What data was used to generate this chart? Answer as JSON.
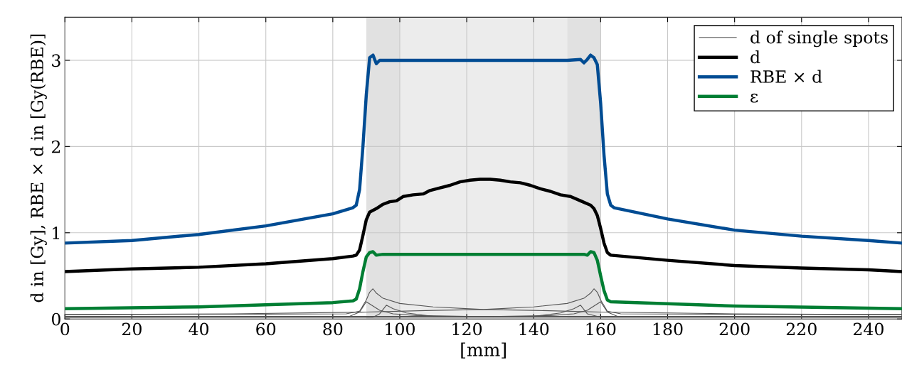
{
  "chart_data": {
    "type": "line",
    "xlabel": "[mm]",
    "ylabel": "d in [Gy], RBE × d in [Gy(RBE)]",
    "xlim": [
      0,
      250
    ],
    "ylim": [
      0,
      3.5
    ],
    "xticks": [
      0,
      20,
      40,
      60,
      80,
      100,
      120,
      140,
      160,
      180,
      200,
      220,
      240
    ],
    "yticks": [
      0,
      1,
      2,
      3
    ],
    "grid": true,
    "legend": "top right",
    "bands": [
      {
        "axis": "x",
        "from": 90,
        "to": 100,
        "color": "#e1e1e1"
      },
      {
        "axis": "x",
        "from": 100,
        "to": 150,
        "color": "#ececec"
      },
      {
        "axis": "x",
        "from": 150,
        "to": 160,
        "color": "#e1e1e1"
      }
    ],
    "series": [
      {
        "name": "d of single spots",
        "color": "#555555",
        "x": [
          0,
          60,
          84,
          88,
          90,
          91,
          92,
          93,
          95,
          100,
          110,
          125,
          140,
          160,
          200,
          250
        ],
        "values": [
          0.05,
          0.055,
          0.06,
          0.09,
          0.22,
          0.31,
          0.35,
          0.3,
          0.24,
          0.18,
          0.14,
          0.11,
          0.1,
          0.08,
          0.06,
          0.05
        ]
      },
      {
        "color": "#555555",
        "x": [
          0,
          50,
          90,
          110,
          125,
          140,
          150,
          155,
          157,
          158,
          159,
          160,
          162,
          166,
          190,
          250
        ],
        "values": [
          0.05,
          0.06,
          0.08,
          0.1,
          0.11,
          0.14,
          0.18,
          0.24,
          0.3,
          0.35,
          0.31,
          0.22,
          0.09,
          0.06,
          0.055,
          0.05
        ]
      },
      {
        "color": "#555555",
        "x": [
          0,
          85,
          88,
          90,
          92,
          94,
          98,
          105,
          120,
          250
        ],
        "values": [
          0.03,
          0.03,
          0.08,
          0.2,
          0.15,
          0.1,
          0.06,
          0.04,
          0.03,
          0.03
        ]
      },
      {
        "color": "#555555",
        "x": [
          0,
          130,
          145,
          152,
          156,
          158,
          160,
          162,
          165,
          250
        ],
        "values": [
          0.03,
          0.03,
          0.04,
          0.06,
          0.1,
          0.15,
          0.2,
          0.08,
          0.03,
          0.03
        ]
      },
      {
        "color": "#555555",
        "x": [
          0,
          92,
          94,
          96,
          98,
          102,
          110,
          250
        ],
        "values": [
          0.02,
          0.02,
          0.06,
          0.16,
          0.12,
          0.07,
          0.03,
          0.02
        ]
      },
      {
        "color": "#555555",
        "x": [
          0,
          140,
          148,
          152,
          154,
          156,
          160,
          250
        ],
        "values": [
          0.02,
          0.03,
          0.07,
          0.12,
          0.16,
          0.06,
          0.02,
          0.02
        ]
      },
      {
        "color": "#555555",
        "x": [
          0,
          250
        ],
        "values": [
          0.02,
          0.02
        ]
      },
      {
        "name": "d",
        "color": "#000000",
        "x": [
          0,
          20,
          40,
          60,
          80,
          86,
          87,
          88,
          89,
          90,
          91,
          93,
          95,
          97,
          99,
          101,
          104,
          107,
          109,
          112,
          115,
          118,
          121,
          124,
          127,
          130,
          133,
          136,
          139,
          142,
          145,
          148,
          151,
          154,
          157,
          158,
          159,
          160,
          161,
          162,
          163,
          180,
          200,
          220,
          240,
          250
        ],
        "values": [
          0.55,
          0.58,
          0.6,
          0.64,
          0.7,
          0.73,
          0.74,
          0.8,
          0.97,
          1.15,
          1.24,
          1.28,
          1.33,
          1.36,
          1.37,
          1.42,
          1.44,
          1.45,
          1.49,
          1.52,
          1.55,
          1.59,
          1.61,
          1.62,
          1.62,
          1.61,
          1.59,
          1.58,
          1.55,
          1.51,
          1.48,
          1.44,
          1.42,
          1.37,
          1.32,
          1.28,
          1.2,
          1.05,
          0.88,
          0.77,
          0.74,
          0.68,
          0.62,
          0.59,
          0.57,
          0.55
        ]
      },
      {
        "name": "RBE × d",
        "color": "#004c93",
        "x": [
          0,
          20,
          40,
          60,
          80,
          86,
          87,
          88,
          89,
          90,
          91,
          92,
          93,
          94,
          96,
          100,
          120,
          140,
          150,
          154,
          155,
          156,
          157,
          158,
          159,
          160,
          161,
          162,
          163,
          164,
          180,
          200,
          220,
          240,
          250
        ],
        "values": [
          0.88,
          0.91,
          0.98,
          1.08,
          1.22,
          1.29,
          1.32,
          1.5,
          2.0,
          2.6,
          3.03,
          3.06,
          2.96,
          3.0,
          3.0,
          3.0,
          3.0,
          3.0,
          3.0,
          3.01,
          2.97,
          3.01,
          3.06,
          3.03,
          2.95,
          2.5,
          1.9,
          1.45,
          1.32,
          1.29,
          1.16,
          1.03,
          0.96,
          0.91,
          0.88
        ]
      },
      {
        "name": "ε",
        "color": "#007e33",
        "x": [
          0,
          40,
          80,
          86,
          87,
          88,
          89,
          90,
          91,
          92,
          93,
          95,
          100,
          120,
          140,
          155,
          156,
          157,
          158,
          159,
          160,
          161,
          162,
          163,
          200,
          250
        ],
        "values": [
          0.12,
          0.14,
          0.19,
          0.21,
          0.23,
          0.35,
          0.55,
          0.72,
          0.77,
          0.78,
          0.74,
          0.75,
          0.75,
          0.75,
          0.75,
          0.75,
          0.74,
          0.78,
          0.77,
          0.68,
          0.5,
          0.33,
          0.22,
          0.2,
          0.15,
          0.12
        ]
      }
    ]
  }
}
